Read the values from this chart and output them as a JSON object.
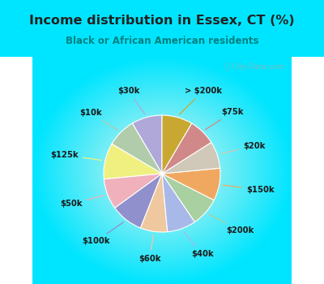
{
  "title": "Income distribution in Essex, CT (%)",
  "subtitle": "Black or African American residents",
  "labels": [
    "$30k",
    "$10k",
    "$125k",
    "$50k",
    "$100k",
    "$60k",
    "$40k",
    "$200k",
    "$150k",
    "$20k",
    "$75k",
    "> $200k"
  ],
  "values": [
    8.5,
    8.0,
    10.0,
    8.5,
    9.0,
    7.5,
    8.0,
    8.0,
    9.0,
    7.5,
    7.5,
    8.5
  ],
  "colors": [
    "#b0a8d8",
    "#b0ccaa",
    "#f0f080",
    "#f0b0bc",
    "#9090cc",
    "#f0c8a0",
    "#a8b8e8",
    "#a8d0a0",
    "#f0a860",
    "#d0c8b8",
    "#d08888",
    "#c8a830"
  ],
  "bg_outer": "#00e5ff",
  "bg_inner": "#e0f5ee",
  "title_color": "#222222",
  "subtitle_color": "#008080",
  "startangle": 90,
  "figsize": [
    4.0,
    3.5
  ],
  "dpi": 100
}
